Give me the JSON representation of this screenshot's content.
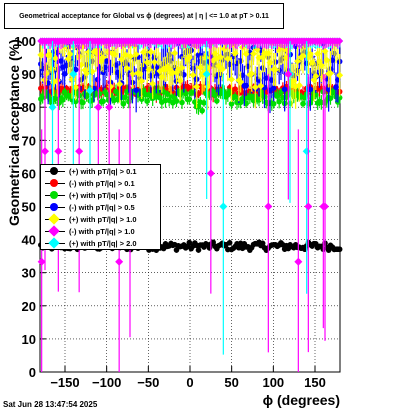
{
  "chart_data": {
    "type": "scatter",
    "title": "Geometrical acceptance for Global vs ϕ (degrees) at | η | <= 1.0 at pT > 0.11",
    "xlabel": "ϕ (degrees)",
    "ylabel": "Geometrical acceptance (%)",
    "xlim": [
      -180,
      180
    ],
    "ylim": [
      0,
      100
    ],
    "xticks": [
      "−150",
      "−100",
      "−50",
      "0",
      "50",
      "100",
      "150"
    ],
    "xtick_values": [
      -150,
      -100,
      -50,
      0,
      50,
      100,
      150
    ],
    "yticks": [
      "0",
      "10",
      "20",
      "30",
      "40",
      "50",
      "60",
      "70",
      "80",
      "90",
      "100"
    ],
    "ytick_values": [
      0,
      10,
      20,
      30,
      40,
      50,
      60,
      70,
      80,
      90,
      100
    ],
    "grid": true,
    "legend_position": "left",
    "series": [
      {
        "name": "(+) with pT/|q| > 0.1",
        "color": "#000000",
        "marker": "circle",
        "level": 38,
        "spread": 1.2
      },
      {
        "name": "(-) with pT/|q| > 0.1",
        "color": "#ff0000",
        "marker": "circle",
        "level": 85,
        "spread": 1.3
      },
      {
        "name": "(+) with pT/|q| > 0.5",
        "color": "#00dd00",
        "marker": "circle",
        "level": 83,
        "spread": 2
      },
      {
        "name": "(-) with pT/|q| > 0.5",
        "color": "#0000ff",
        "marker": "circle",
        "level": 91,
        "spread": 6
      },
      {
        "name": "(+) with pT/|q| > 1.0",
        "color": "#ffff00",
        "marker": "diamond",
        "level": 93,
        "spread": 7
      },
      {
        "name": "(-) with pT/|q| > 1.0",
        "color": "#ff00ff",
        "marker": "diamond",
        "level": 100,
        "spread": 0
      },
      {
        "name": "(+) with pT/|q| > 2.0",
        "color": "#00ffff",
        "marker": "diamond",
        "level": 100,
        "spread": 0
      }
    ],
    "magenta_low_points": [
      {
        "x": -178,
        "y": 33.3
      },
      {
        "x": -174,
        "y": 66.7
      },
      {
        "x": -158,
        "y": 66.7
      },
      {
        "x": -133,
        "y": 66.7
      },
      {
        "x": -110,
        "y": 80
      },
      {
        "x": -97,
        "y": 80
      },
      {
        "x": -85,
        "y": 33.3
      },
      {
        "x": -72,
        "y": 50
      },
      {
        "x": 25,
        "y": 60
      },
      {
        "x": 94,
        "y": 50
      },
      {
        "x": 130,
        "y": 33.3
      },
      {
        "x": 142,
        "y": 50
      },
      {
        "x": 160,
        "y": 50
      },
      {
        "x": 162,
        "y": 50
      },
      {
        "x": 118,
        "y": 90
      }
    ],
    "cyan_low_points": [
      {
        "x": -165,
        "y": 80
      },
      {
        "x": -140,
        "y": 90
      },
      {
        "x": -120,
        "y": 85
      },
      {
        "x": 20,
        "y": 90
      },
      {
        "x": 40,
        "y": 50
      },
      {
        "x": 120,
        "y": 90
      },
      {
        "x": 140,
        "y": 66.7
      }
    ]
  },
  "footer": {
    "timestamp": "Sat Jun 28 13:47:54 2025"
  }
}
